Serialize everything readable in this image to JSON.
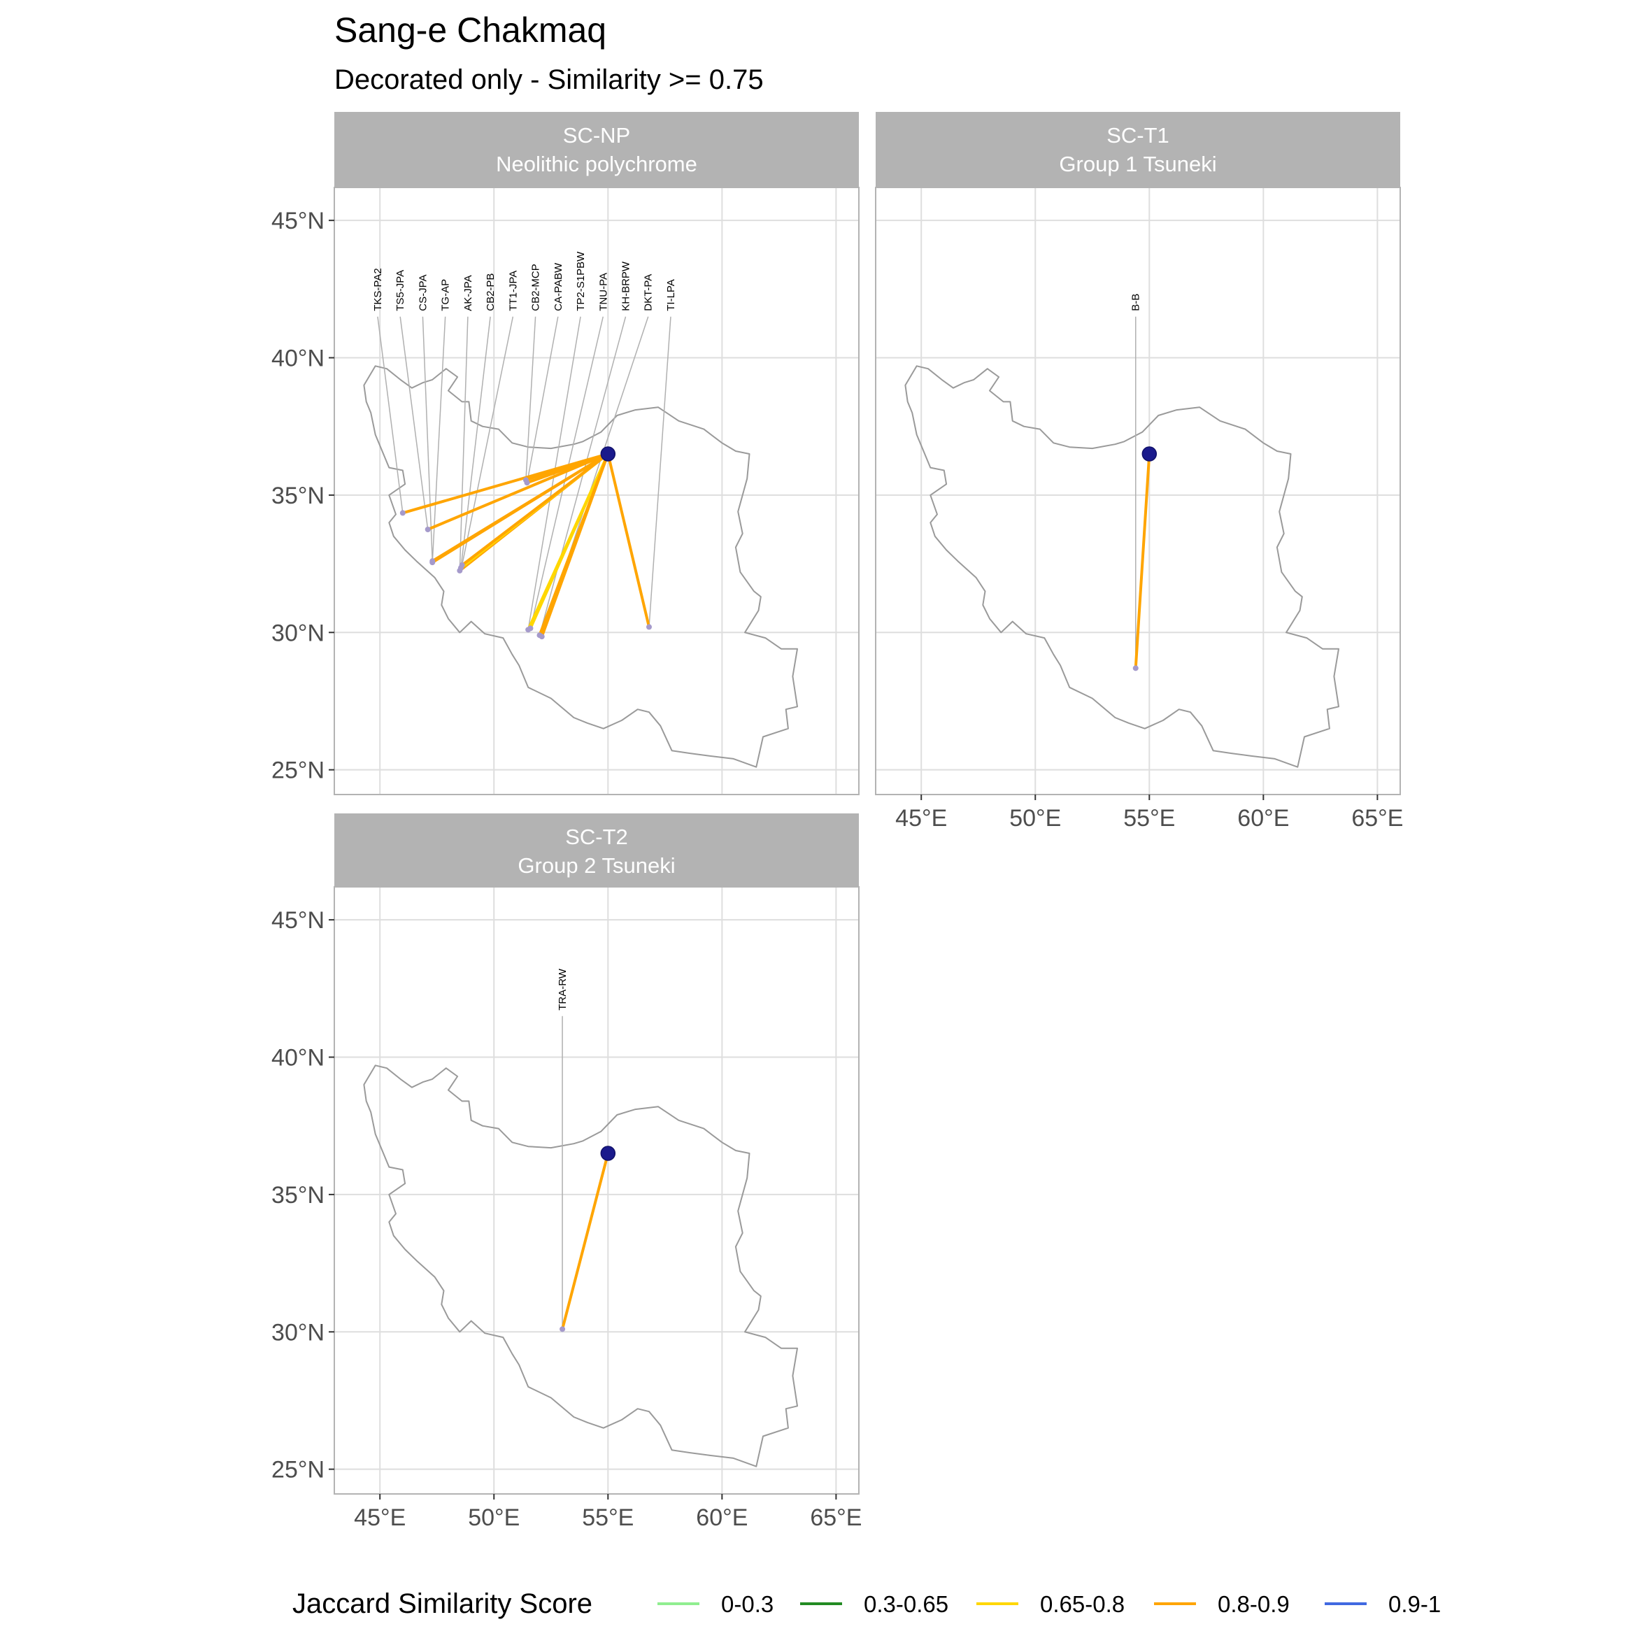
{
  "title": "Sang-e Chakmaq",
  "subtitle": "Decorated only - Similarity >= 0.75",
  "chart_data": {
    "type": "map",
    "region": "Iran",
    "x_ticks": [
      "45°E",
      "50°E",
      "55°E",
      "60°E",
      "65°E"
    ],
    "y_ticks": [
      "25°N",
      "30°N",
      "35°N",
      "40°N",
      "45°N"
    ],
    "xlim": [
      43,
      66
    ],
    "ylim": [
      24.1,
      46.2
    ],
    "grid": true,
    "origin": {
      "name": "Sang-e Chakmaq",
      "lon": 55.0,
      "lat": 36.5
    },
    "panels": [
      {
        "id": "SC-NP",
        "strip_line1": "SC-NP",
        "strip_line2": "Neolithic polychrome",
        "links": [
          {
            "label": "TKS-PA2",
            "lon": 46.0,
            "lat": 34.35,
            "score_band": "0.8-0.9"
          },
          {
            "label": "TS5-JPA",
            "lon": 47.1,
            "lat": 33.75,
            "score_band": "0.8-0.9"
          },
          {
            "label": "CS-JPA",
            "lon": 47.3,
            "lat": 32.6,
            "score_band": "0.8-0.9"
          },
          {
            "label": "TG-AP",
            "lon": 47.3,
            "lat": 32.55,
            "score_band": "0.8-0.9"
          },
          {
            "label": "AK-JPA",
            "lon": 48.5,
            "lat": 32.25,
            "score_band": "0.8-0.9"
          },
          {
            "label": "CB2-PB",
            "lon": 48.55,
            "lat": 32.35,
            "score_band": "0.65-0.8"
          },
          {
            "label": "TT1-JPA",
            "lon": 48.6,
            "lat": 32.45,
            "score_band": "0.8-0.9"
          },
          {
            "label": "CB2-MCP",
            "lon": 51.4,
            "lat": 35.55,
            "score_band": "0.8-0.9"
          },
          {
            "label": "CA-PABW",
            "lon": 51.45,
            "lat": 35.45,
            "score_band": "0.8-0.9"
          },
          {
            "label": "TP2-S1PBW",
            "lon": 51.5,
            "lat": 30.1,
            "score_band": "0.65-0.8"
          },
          {
            "label": "TNU-PA",
            "lon": 51.6,
            "lat": 30.15,
            "score_band": "0.65-0.8"
          },
          {
            "label": "KH-BRPW",
            "lon": 52.0,
            "lat": 29.9,
            "score_band": "0.8-0.9"
          },
          {
            "label": "DKT-PA",
            "lon": 52.1,
            "lat": 29.85,
            "score_band": "0.8-0.9"
          },
          {
            "label": "TI-LPA",
            "lon": 56.8,
            "lat": 30.2,
            "score_band": "0.8-0.9"
          }
        ]
      },
      {
        "id": "SC-T1",
        "strip_line1": "SC-T1",
        "strip_line2": "Group 1 Tsuneki",
        "links": [
          {
            "label": "B-B",
            "lon": 54.4,
            "lat": 28.7,
            "score_band": "0.8-0.9"
          }
        ]
      },
      {
        "id": "SC-T2",
        "strip_line1": "SC-T2",
        "strip_line2": "Group 2 Tsuneki",
        "links": [
          {
            "label": "TRA-RW",
            "lon": 53.0,
            "lat": 30.1,
            "score_band": "0.8-0.9"
          }
        ]
      }
    ],
    "legend": {
      "title": "Jaccard Similarity Score",
      "position": "bottom",
      "items": [
        {
          "label": "0-0.3",
          "color": "#90ee90"
        },
        {
          "label": "0.3-0.65",
          "color": "#228b22"
        },
        {
          "label": "0.65-0.8",
          "color": "#ffd700"
        },
        {
          "label": "0.8-0.9",
          "color": "#ffa500"
        },
        {
          "label": "0.9-1",
          "color": "#4169e1"
        }
      ]
    }
  },
  "colors": {
    "strip_bg": "#b3b3b3",
    "panel_border": "#b3b3b3",
    "grid": "#dedede",
    "outline": "#9a9a9a",
    "origin_fill": "#1a1a8c",
    "site_point": "#a59acb"
  }
}
